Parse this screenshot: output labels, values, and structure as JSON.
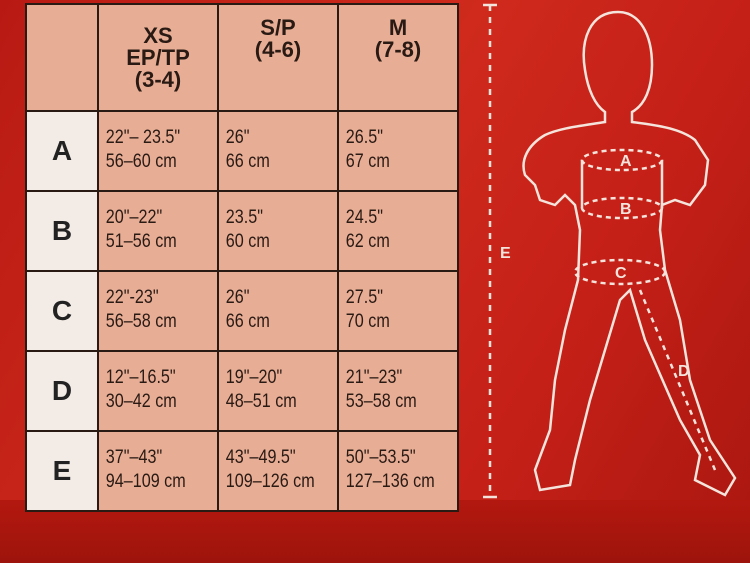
{
  "headers": [
    {
      "lines": [
        "XS",
        "EP/TP",
        "(3-4)"
      ]
    },
    {
      "lines": [
        "S/P",
        "(4-6)"
      ]
    },
    {
      "lines": [
        "M",
        "(7-8)"
      ]
    }
  ],
  "rows": [
    {
      "label": "A",
      "cells": [
        [
          "22\"– 23.5\"",
          "56–60 cm"
        ],
        [
          "26\"",
          "66 cm"
        ],
        [
          "26.5\"",
          "67 cm"
        ]
      ]
    },
    {
      "label": "B",
      "cells": [
        [
          "20\"–22\"",
          "51–56 cm"
        ],
        [
          "23.5\"",
          "60 cm"
        ],
        [
          "24.5\"",
          "62 cm"
        ]
      ]
    },
    {
      "label": "C",
      "cells": [
        [
          "22\"-23\"",
          "56–58 cm"
        ],
        [
          "26\"",
          "66 cm"
        ],
        [
          "27.5\"",
          "70 cm"
        ]
      ]
    },
    {
      "label": "D",
      "cells": [
        [
          "12\"–16.5\"",
          "30–42 cm"
        ],
        [
          "19\"–20\"",
          "48–51 cm"
        ],
        [
          "21\"–23\"",
          "53–58 cm"
        ]
      ]
    },
    {
      "label": "E",
      "cells": [
        [
          "37\"–43\"",
          "94–109 cm"
        ],
        [
          "43\"–49.5\"",
          "109–126 cm"
        ],
        [
          "50\"–53.5\"",
          "127–136 cm"
        ]
      ]
    }
  ],
  "figure": {
    "labels": {
      "a": "A",
      "b": "B",
      "c": "C",
      "d": "D",
      "e": "E"
    }
  },
  "colors": {
    "background": "#c41f17",
    "cell": "#e7ad95",
    "label_cell": "#f3ece6"
  }
}
